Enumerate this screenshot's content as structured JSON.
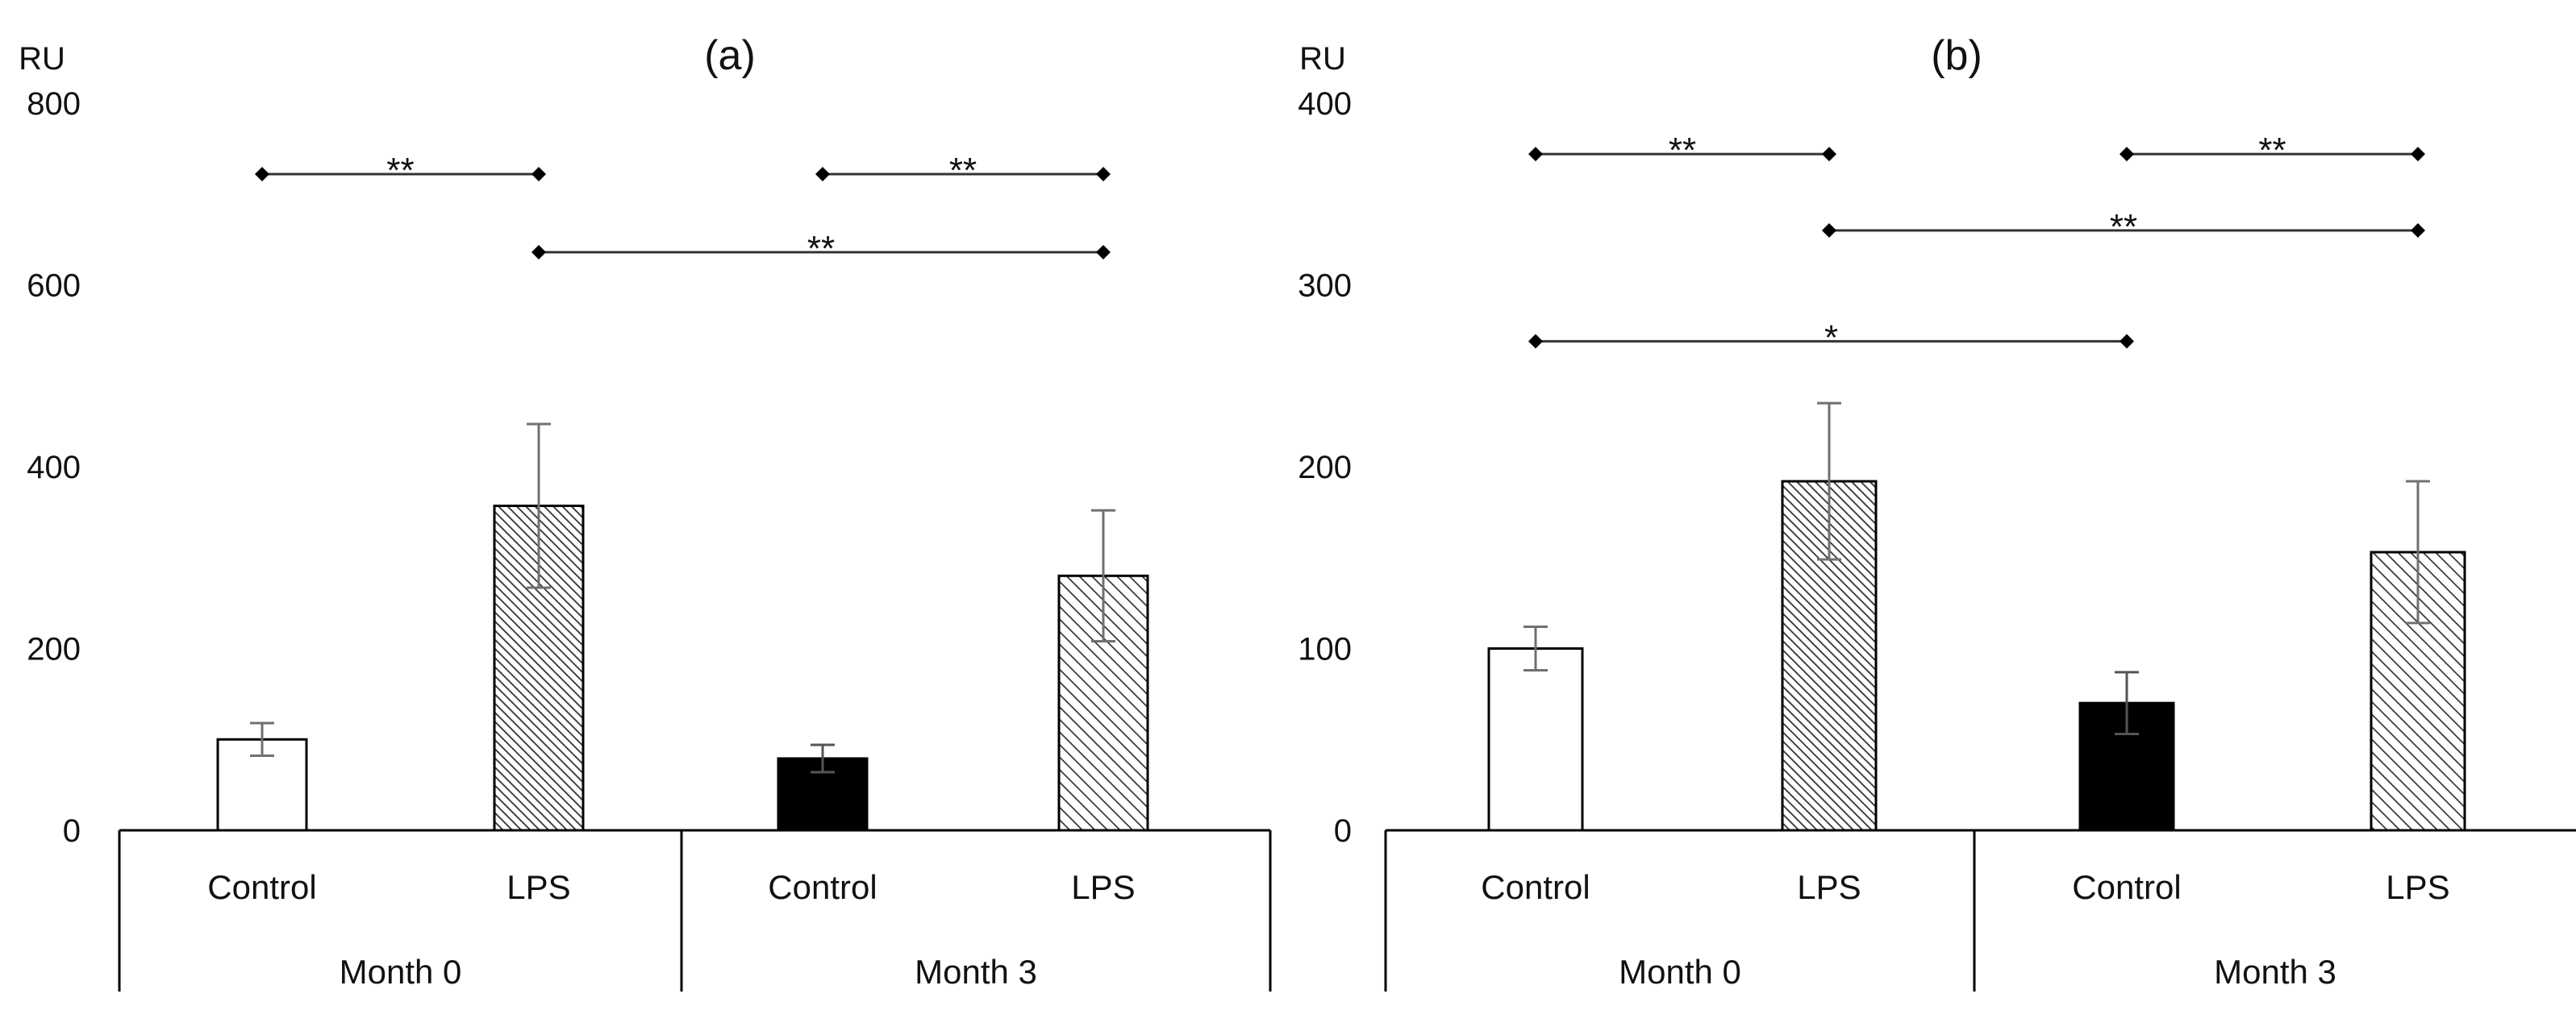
{
  "colors": {
    "axis": "#000000",
    "error_bar": "#707070",
    "sig_line": "#333333",
    "control_m0_fill": "#ffffff",
    "control_m3_fill": "#000000",
    "lps_fill": "#ffffff",
    "lps_hatch": "#333333"
  },
  "chart_data": [
    {
      "type": "bar",
      "title": "(a)",
      "ylabel": "RU",
      "ylim": [
        0,
        800
      ],
      "yticks": [
        "0",
        "200",
        "400",
        "600",
        "800"
      ],
      "categories": [
        "Control",
        "LPS",
        "Control",
        "LPS"
      ],
      "groups": [
        "Month 0",
        "Month 3"
      ],
      "values": [
        100,
        357,
        79,
        280
      ],
      "errors": [
        18,
        90,
        15,
        72
      ],
      "fills": [
        "white",
        "dense-hatch",
        "black",
        "hatch"
      ],
      "significance": [
        {
          "from": 0,
          "to": 1,
          "y": 722,
          "label": "**"
        },
        {
          "from": 2,
          "to": 3,
          "y": 722,
          "label": "**"
        },
        {
          "from": 1,
          "to": 3,
          "y": 636,
          "label": "**"
        }
      ]
    },
    {
      "type": "bar",
      "title": "(b)",
      "ylabel": "RU",
      "ylim": [
        0,
        400
      ],
      "yticks": [
        "0",
        "100",
        "200",
        "300",
        "400"
      ],
      "categories": [
        "Control",
        "LPS",
        "Control",
        "LPS"
      ],
      "groups": [
        "Month 0",
        "Month 3"
      ],
      "values": [
        100,
        192,
        70,
        153
      ],
      "errors": [
        12,
        43,
        17,
        39
      ],
      "fills": [
        "white",
        "dense-hatch",
        "black",
        "hatch"
      ],
      "significance": [
        {
          "from": 0,
          "to": 1,
          "y": 372,
          "label": "**"
        },
        {
          "from": 2,
          "to": 3,
          "y": 372,
          "label": "**"
        },
        {
          "from": 1,
          "to": 3,
          "y": 330,
          "label": "**"
        },
        {
          "from": 0,
          "to": 2,
          "y": 269,
          "label": "*"
        }
      ]
    }
  ]
}
